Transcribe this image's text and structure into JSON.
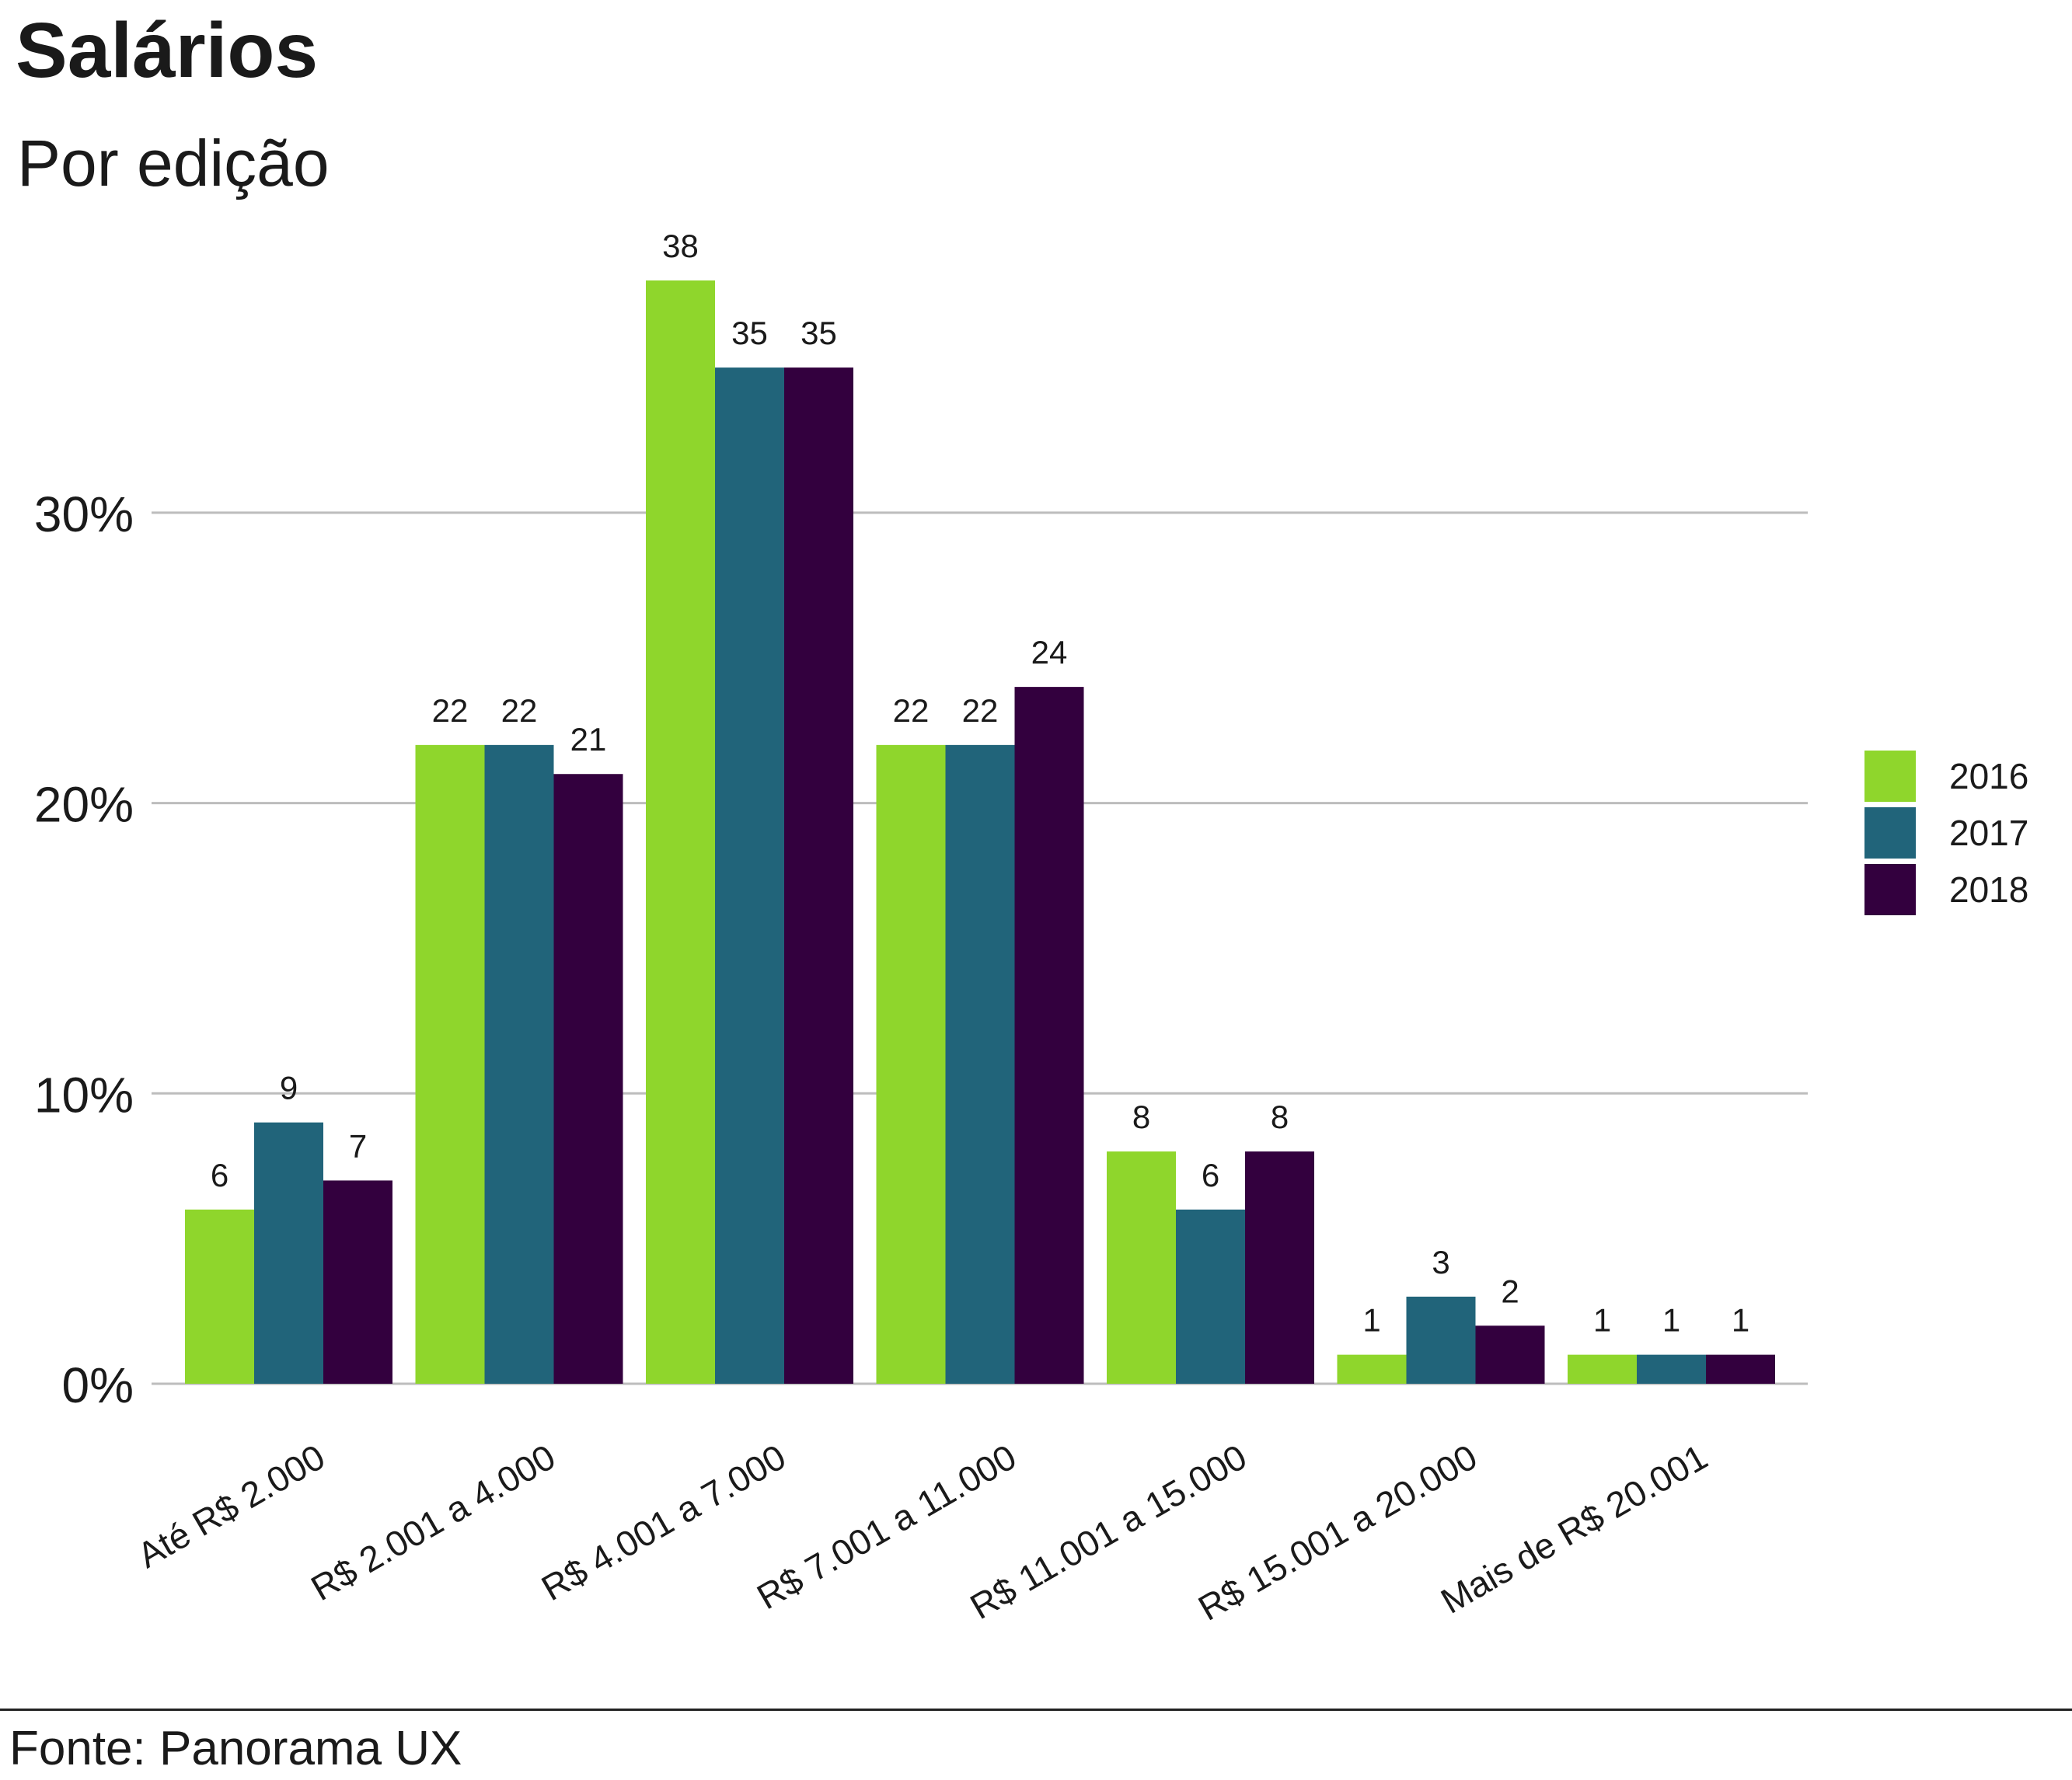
{
  "title": "Salários",
  "subtitle": "Por edição",
  "source": "Fonte: Panorama UX",
  "chart_data": {
    "type": "bar",
    "title": "Salários",
    "subtitle": "Por edição",
    "xlabel": "",
    "ylabel": "",
    "categories": [
      "Até R$ 2.000",
      "R$ 2.001 a 4.000",
      "R$ 4.001 a 7.000",
      "R$ 7.001 a 11.000",
      "R$ 11.001 a 15.000",
      "R$ 15.001 a 20.000",
      "Mais de R$ 20.001"
    ],
    "series": [
      {
        "name": "2016",
        "color": "#8fd62c",
        "values": [
          6,
          22,
          38,
          22,
          8,
          1,
          1
        ]
      },
      {
        "name": "2017",
        "color": "#21647a",
        "values": [
          9,
          22,
          35,
          22,
          6,
          3,
          1
        ]
      },
      {
        "name": "2018",
        "color": "#33003e",
        "values": [
          7,
          21,
          35,
          24,
          8,
          2,
          1
        ]
      }
    ],
    "ylim": [
      0,
      38
    ],
    "yticks": [
      "0%",
      "10%",
      "20%",
      "30%"
    ],
    "ytick_values": [
      0,
      10,
      20,
      30
    ],
    "grid": true,
    "legend_position": "right",
    "data_labels": true
  }
}
